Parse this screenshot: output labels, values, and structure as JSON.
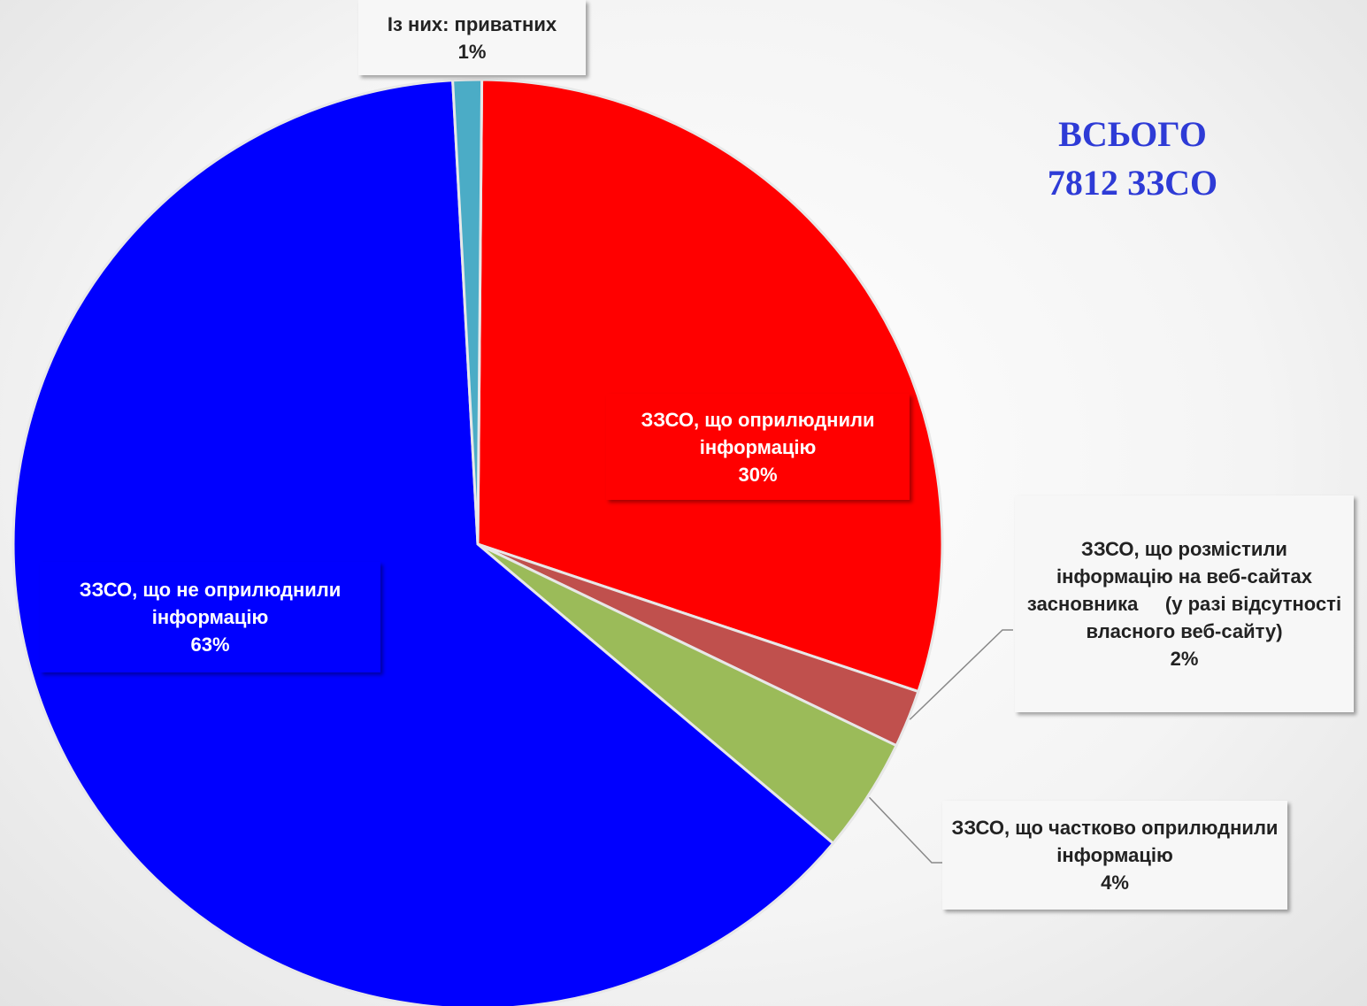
{
  "chart_data": {
    "type": "pie",
    "categories": [
      "ЗЗСО, що оприлюднили інформацію",
      "ЗЗСО, що розмістили інформацію на веб-сайтах засновника     (у разі відсутності власного веб-сайту)",
      "ЗЗСО, що частково оприлюднили інформацію",
      "ЗЗСО, що не оприлюднили інформацію",
      "Із них: приватних"
    ],
    "values": [
      30,
      2,
      4,
      63,
      1
    ],
    "value_labels": [
      "30%",
      "2%",
      "4%",
      "63%",
      "1%"
    ],
    "colors": [
      "#ff0000",
      "#c0504d",
      "#9bbb59",
      "#0000ff",
      "#4bacc6"
    ],
    "annotation": [
      "ВСЬОГО",
      "7812  ЗЗСО"
    ]
  }
}
